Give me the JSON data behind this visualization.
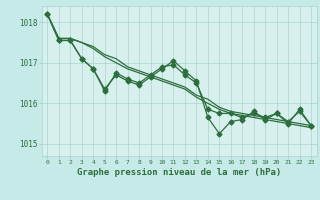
{
  "background_color": "#c5eae7",
  "plot_bg_color": "#d8f0ed",
  "grid_color": "#aad4d0",
  "line_color": "#2d6e3e",
  "text_color": "#2d6e3e",
  "xlabel": "Graphe pression niveau de la mer (hPa)",
  "xlim": [
    -0.5,
    23.5
  ],
  "ylim": [
    1014.7,
    1018.4
  ],
  "yticks": [
    1015,
    1016,
    1017,
    1018
  ],
  "xticks": [
    0,
    1,
    2,
    3,
    4,
    5,
    6,
    7,
    8,
    9,
    10,
    11,
    12,
    13,
    14,
    15,
    16,
    17,
    18,
    19,
    20,
    21,
    22,
    23
  ],
  "series_smooth1": [
    1018.2,
    1017.6,
    1017.6,
    1017.5,
    1017.4,
    1017.2,
    1017.1,
    1016.9,
    1016.8,
    1016.7,
    1016.6,
    1016.5,
    1016.4,
    1016.2,
    1016.1,
    1015.9,
    1015.8,
    1015.75,
    1015.7,
    1015.65,
    1015.6,
    1015.55,
    1015.5,
    1015.45
  ],
  "series_smooth2": [
    1018.2,
    1017.6,
    1017.6,
    1017.5,
    1017.35,
    1017.15,
    1017.0,
    1016.85,
    1016.75,
    1016.65,
    1016.55,
    1016.45,
    1016.35,
    1016.15,
    1016.0,
    1015.85,
    1015.75,
    1015.7,
    1015.65,
    1015.6,
    1015.55,
    1015.5,
    1015.45,
    1015.4
  ],
  "series_jagged1": [
    1018.2,
    1017.55,
    1017.55,
    1017.1,
    1016.85,
    1016.35,
    1016.7,
    1016.55,
    1016.45,
    1016.65,
    1016.85,
    1017.05,
    1016.8,
    1016.55,
    1015.65,
    1015.25,
    1015.55,
    1015.6,
    1015.8,
    1015.6,
    1015.75,
    1015.5,
    1015.85,
    1015.45
  ],
  "series_jagged2": [
    1018.2,
    1017.55,
    1017.55,
    1017.1,
    1016.85,
    1016.3,
    1016.75,
    1016.6,
    1016.5,
    1016.7,
    1016.9,
    1016.95,
    1016.7,
    1016.5,
    1015.85,
    1015.75,
    1015.75,
    1015.65,
    1015.75,
    1015.65,
    1015.75,
    1015.55,
    1015.8,
    1015.45
  ]
}
